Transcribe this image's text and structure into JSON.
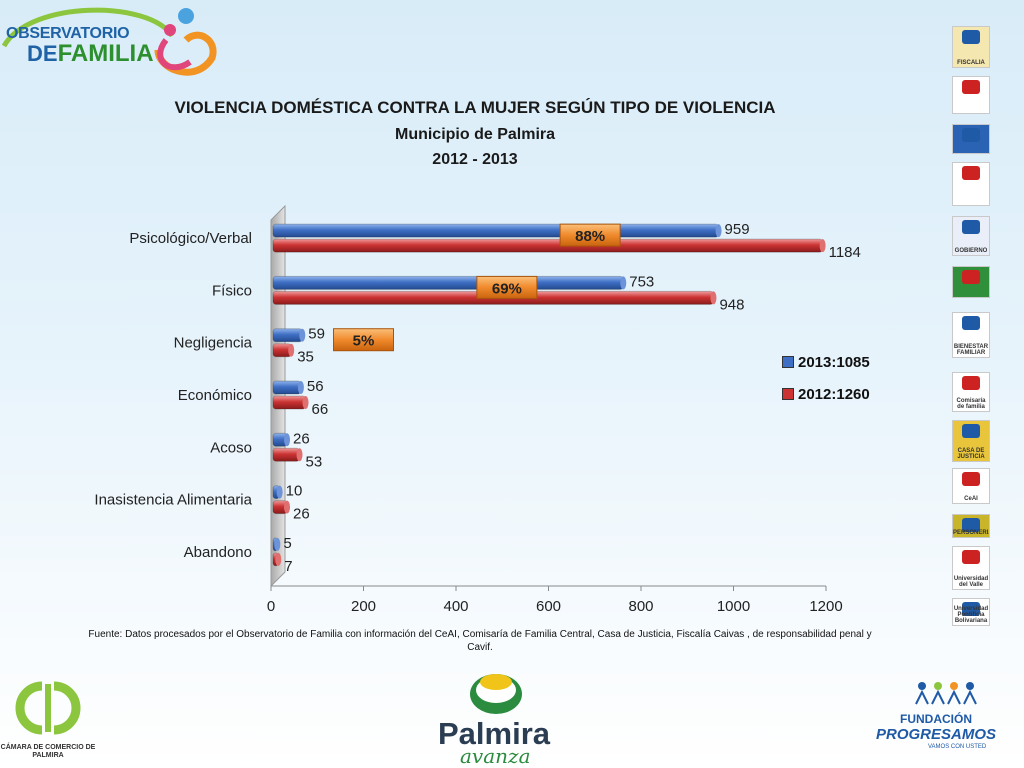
{
  "titles": {
    "line1": "VIOLENCIA DOMÉSTICA CONTRA LA MUJER SEGÚN TIPO DE VIOLENCIA",
    "line2": "Municipio de Palmira",
    "line3": "2012 - 2013"
  },
  "source": "Fuente: Datos procesados por el Observatorio de  Familia con información del CeAI, Comisaría de Familia Central, Casa de Justicia, Fiscalía Caivas , de responsabilidad penal y Cavif.",
  "logos": {
    "observatorio_line1": "OBSERVATORIO",
    "observatorio_de": "DE",
    "observatorio_familia": "FAMILIA",
    "camara_comercio": "CÁMARA DE COMERCIO DE PALMIRA",
    "palmira": "Palmira",
    "palmira_sub": "avanza",
    "fundacion": "FUNDACIÓN",
    "progresamos": "PROGRESAMOS",
    "vamos": "VAMOS CON USTED",
    "side": [
      "FISCALIA",
      "",
      "",
      "",
      "GOBIERNO",
      "",
      "BIENESTAR FAMILIAR",
      "Comisaría de familia",
      "CASA DE JUSTICIA",
      "CeAI",
      "PERSONERIA",
      "Universidad del Valle",
      "Universidad Pontificia Bolivariana"
    ]
  },
  "colors": {
    "series_2013": "#3f6fc4",
    "series_2012": "#cc3333",
    "badge": "#f08a2c"
  },
  "chart_data": {
    "type": "bar",
    "orientation": "horizontal",
    "categories": [
      "Psicológico/Verbal",
      "Físico",
      "Negligencia",
      "Económico",
      "Acoso",
      "Inasistencia Alimentaria",
      "Abandono"
    ],
    "series": [
      {
        "name": "2013:1085",
        "values": [
          959,
          753,
          59,
          56,
          26,
          10,
          5
        ]
      },
      {
        "name": "2012:1260",
        "values": [
          1184,
          948,
          35,
          66,
          53,
          26,
          7
        ]
      }
    ],
    "annotations": [
      {
        "category": "Psicológico/Verbal",
        "text": "88%",
        "x": 690
      },
      {
        "category": "Físico",
        "text": "69%",
        "x": 510
      },
      {
        "category": "Negligencia",
        "text": "5%",
        "x": 200
      }
    ],
    "xlim": [
      0,
      1200
    ],
    "xticks": [
      0,
      200,
      400,
      600,
      800,
      1000,
      1200
    ],
    "legend_position": "right",
    "grid": false
  }
}
